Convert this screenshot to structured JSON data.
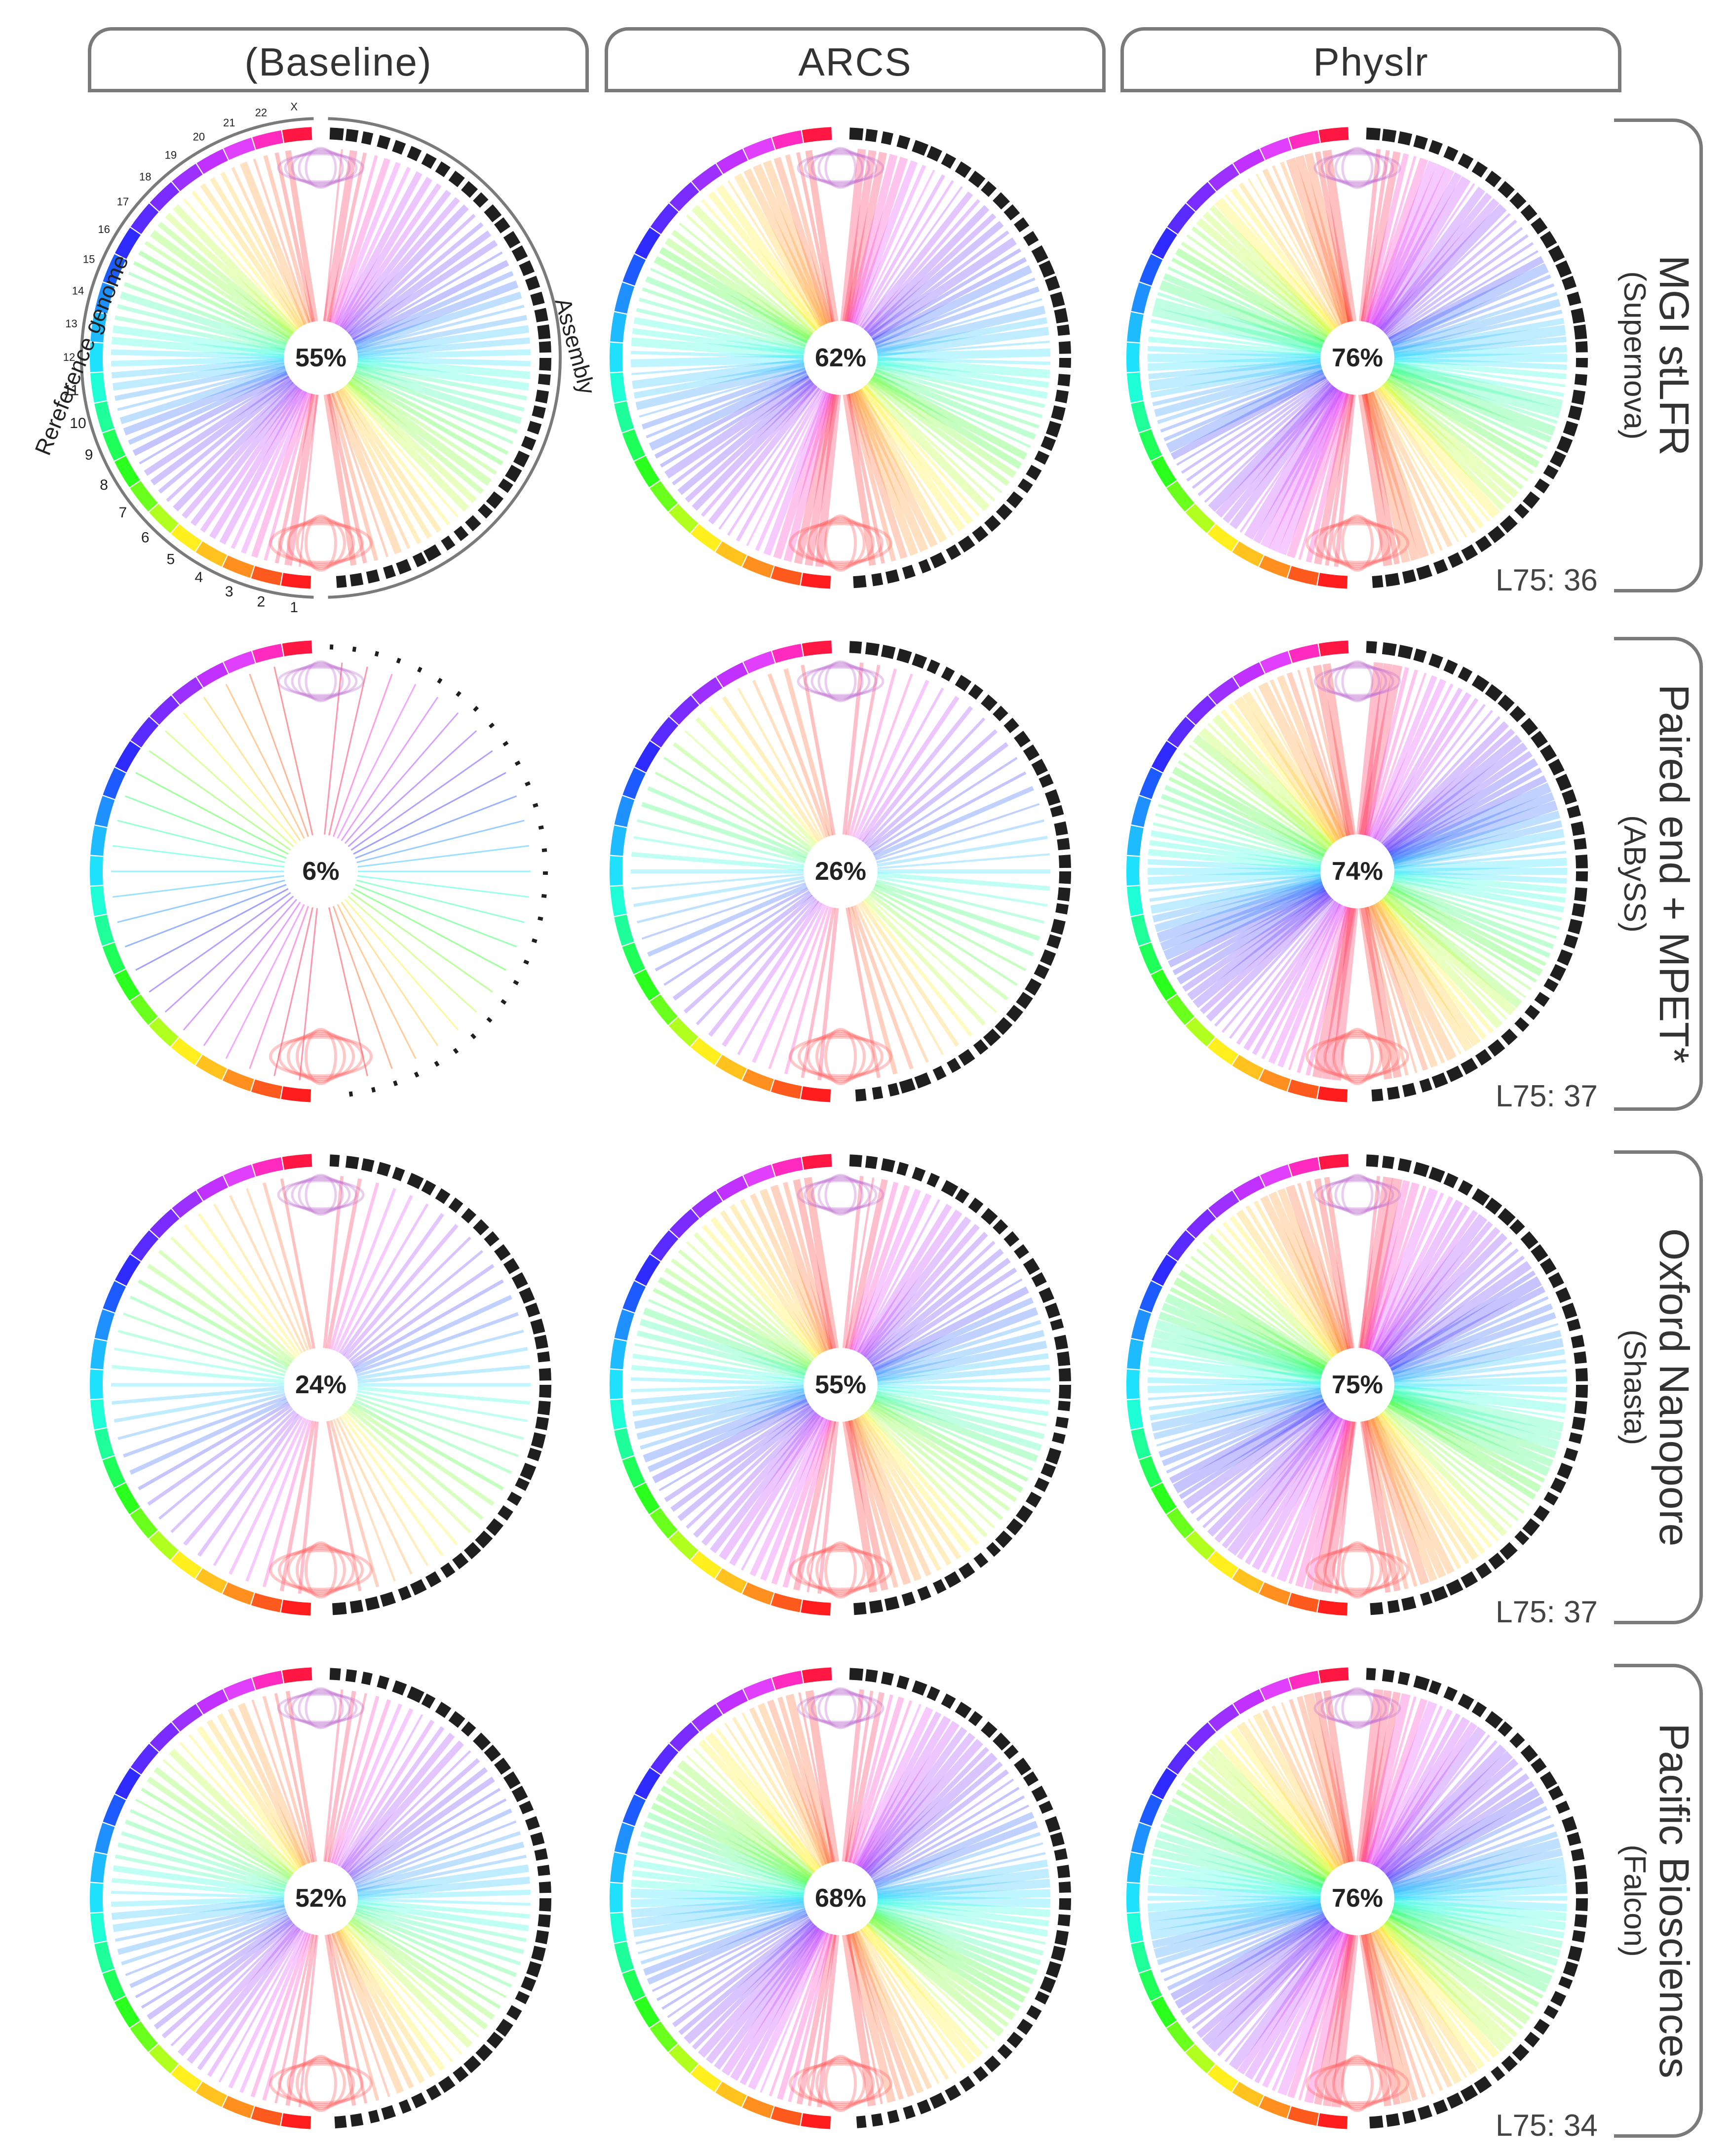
{
  "columns": [
    {
      "label": "(Baseline)"
    },
    {
      "label": "ARCS"
    },
    {
      "label": "Physlr"
    }
  ],
  "rows": [
    {
      "title": "MGI stLFR",
      "subtitle": "(Supernova)",
      "l75": "L75: 36"
    },
    {
      "title": "Paired end + MPET*",
      "subtitle": "(ABySS)",
      "l75": "L75: 37"
    },
    {
      "title": "Oxford Nanopore",
      "subtitle": "(Shasta)",
      "l75": "L75: 37"
    },
    {
      "title": "Pacific Biosciences",
      "subtitle": "(Falcon)",
      "l75": "L75: 34"
    }
  ],
  "percentages": [
    [
      "55%",
      "62%",
      "76%"
    ],
    [
      "6%",
      "26%",
      "74%"
    ],
    [
      "24%",
      "55%",
      "75%"
    ],
    [
      "52%",
      "68%",
      "76%"
    ]
  ],
  "legend": {
    "reference_label": "Rereference genome",
    "assembly_label": "Assembly",
    "chromosomes": [
      "X",
      "22",
      "21",
      "20",
      "19",
      "18",
      "17",
      "16",
      "15",
      "14",
      "13",
      "12",
      "11",
      "10",
      "9",
      "8",
      "7",
      "6",
      "5",
      "4",
      "3",
      "2",
      "1"
    ]
  },
  "colors": {
    "border": "#7a7a7a",
    "assembly_block": "#1f1f1f"
  }
}
